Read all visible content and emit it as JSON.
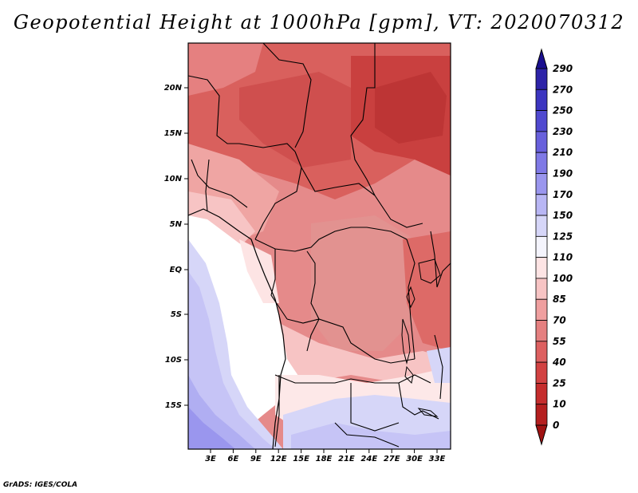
{
  "title": "Geopotential Height at 1000hPa [gpm], VT: 2020070312",
  "footer": "GrADS: IGES/COLA",
  "lat_labels": [
    "20N",
    "15N",
    "10N",
    "5N",
    "EQ",
    "5S",
    "10S",
    "15S"
  ],
  "lon_labels": [
    "3E",
    "6E",
    "9E",
    "12E",
    "15E",
    "18E",
    "21E",
    "24E",
    "27E",
    "30E",
    "33E"
  ],
  "colorbar": {
    "labels": [
      "290",
      "270",
      "250",
      "230",
      "210",
      "190",
      "170",
      "150",
      "125",
      "110",
      "100",
      "85",
      "70",
      "55",
      "40",
      "25",
      "10",
      "0"
    ],
    "colors": [
      "#1a0f8f",
      "#2d23a8",
      "#3c35c0",
      "#5049d0",
      "#6860dc",
      "#7f79e6",
      "#9a96ee",
      "#b8b6f4",
      "#d6d6f8",
      "#f4f4fc",
      "#fde4e4",
      "#f7c4c4",
      "#ef9f9f",
      "#e58080",
      "#dd6060",
      "#d24242",
      "#c52d2d",
      "#b51f1f",
      "#a01212"
    ]
  }
}
